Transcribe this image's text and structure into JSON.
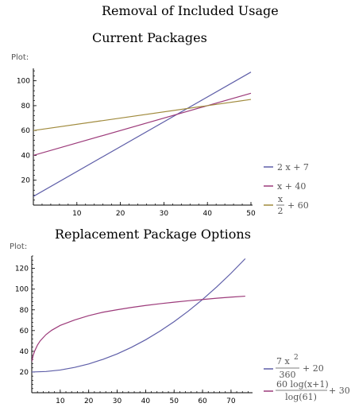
{
  "title": "Removal of Included Usage",
  "plot_label": "Plot:",
  "chart_data": [
    {
      "type": "line",
      "title": "Current Packages",
      "xlim": [
        0,
        50
      ],
      "ylim": [
        0,
        110
      ],
      "xticks": [
        10,
        20,
        30,
        40,
        50
      ],
      "yticks": [
        20,
        40,
        60,
        80,
        100
      ],
      "series": [
        {
          "legend": [
            "2 x + 7"
          ],
          "color": "#5e5ea8",
          "x": [
            0,
            50
          ],
          "y": [
            7,
            107
          ]
        },
        {
          "legend": [
            "x + 40"
          ],
          "color": "#9c3a7a",
          "x": [
            0,
            50
          ],
          "y": [
            40,
            90
          ]
        },
        {
          "legend": [
            "x",
            "2",
            "+ 60"
          ],
          "color": "#a08a3c",
          "x": [
            0,
            50
          ],
          "y": [
            60,
            85
          ]
        }
      ]
    },
    {
      "type": "line",
      "title": "Replacement Package Options",
      "xlim": [
        0,
        77
      ],
      "ylim": [
        0,
        132
      ],
      "xticks": [
        10,
        20,
        30,
        40,
        50,
        60,
        70
      ],
      "yticks": [
        20,
        40,
        60,
        80,
        100,
        120
      ],
      "series": [
        {
          "legend": [
            "7 x",
            "2",
            "360",
            "+ 20"
          ],
          "color": "#5e5ea8",
          "x": [
            0,
            5,
            10,
            15,
            20,
            25,
            30,
            35,
            40,
            45,
            50,
            55,
            60,
            65,
            70,
            75
          ],
          "y": [
            20,
            20.5,
            21.9,
            24.4,
            27.8,
            32.2,
            37.5,
            43.8,
            51.1,
            59.4,
            68.6,
            78.8,
            90,
            102.2,
            115.3,
            129.4
          ]
        },
        {
          "legend": [
            "60 log(x+1)",
            "log(61)",
            "+ 30"
          ],
          "color": "#9c3a7a",
          "x": [
            0,
            0.5,
            1,
            2,
            3,
            5,
            7,
            10,
            15,
            20,
            25,
            30,
            35,
            40,
            45,
            50,
            55,
            60,
            65,
            70,
            75
          ],
          "y": [
            30,
            36.0,
            40.1,
            46.0,
            50.2,
            56.1,
            60.3,
            65.0,
            70.2,
            74.4,
            77.7,
            80.1,
            82.3,
            84.2,
            85.9,
            87.4,
            88.8,
            90.0,
            91.2,
            92.3,
            93.2
          ]
        }
      ]
    }
  ]
}
